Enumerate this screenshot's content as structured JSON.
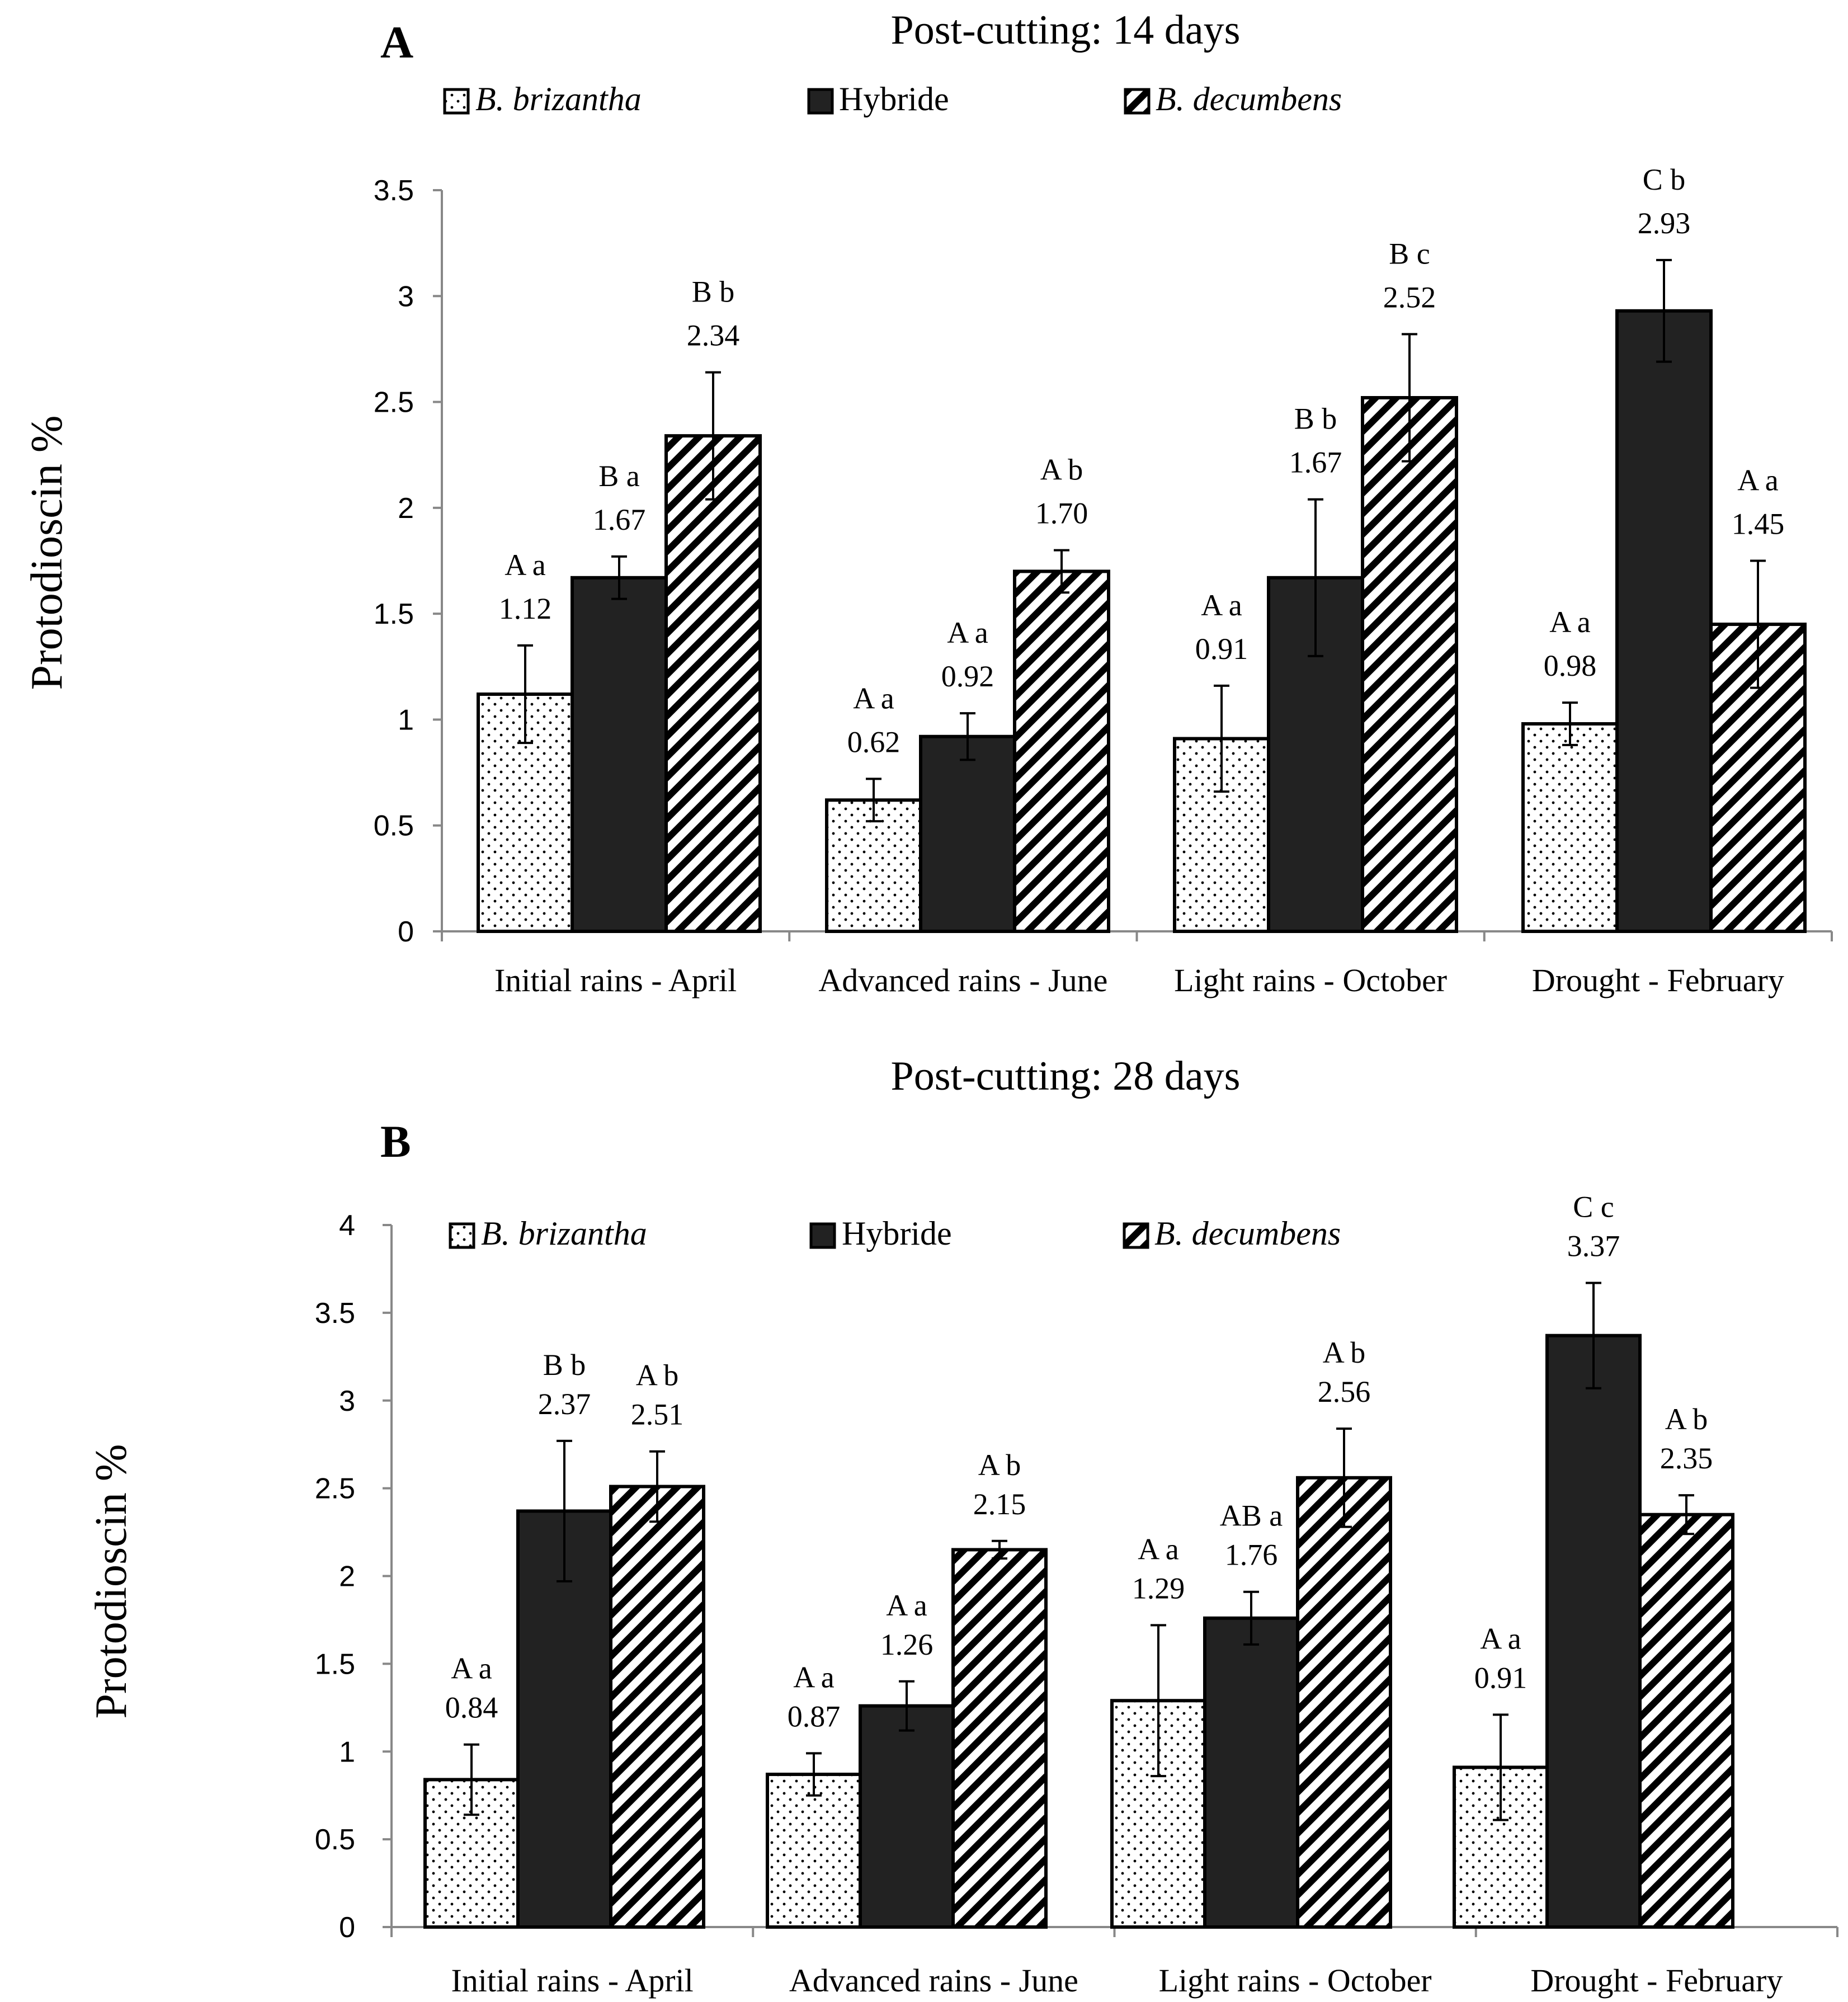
{
  "colors": {
    "background": "#ffffff",
    "axis": "#888888",
    "bar_outline": "#000000",
    "hybride_fill": "#222222",
    "text": "#000000"
  },
  "chart_data": [
    {
      "type": "bar",
      "panel_letter": "A",
      "title": "Post-cutting: 14 days",
      "ylabel": "Protodioscin %",
      "xlabel": "",
      "ylim": [
        0,
        3.5
      ],
      "yticks": [
        "0",
        "0.5",
        "1",
        "1.5",
        "2",
        "2.5",
        "3",
        "3.5"
      ],
      "categories": [
        "Initial rains -  April",
        "Advanced rains -  June",
        "Light rains - October",
        "Drought - February"
      ],
      "legend": [
        {
          "name": "B. brizantha",
          "pattern": "dots",
          "italic": true
        },
        {
          "name": "Hybride",
          "pattern": "solid",
          "italic": false
        },
        {
          "name": "B. decumbens",
          "pattern": "stripes",
          "italic": true
        }
      ],
      "series": [
        {
          "name": "B. brizantha",
          "values": [
            1.12,
            0.62,
            0.91,
            0.98
          ],
          "errors": [
            0.23,
            0.1,
            0.25,
            0.1
          ],
          "value_labels": [
            "1.12",
            "0.62",
            "0.91",
            "0.98"
          ],
          "letters": [
            "A a",
            "A a",
            "A a",
            "A a"
          ]
        },
        {
          "name": "Hybride",
          "values": [
            1.67,
            0.92,
            1.67,
            2.93
          ],
          "errors": [
            0.1,
            0.11,
            0.37,
            0.24
          ],
          "value_labels": [
            "1.67",
            "0.92",
            "1.67",
            "2.93"
          ],
          "letters": [
            "B a",
            "A a",
            "B b",
            "C b"
          ]
        },
        {
          "name": "B. decumbens",
          "values": [
            2.34,
            1.7,
            2.52,
            1.45
          ],
          "errors": [
            0.3,
            0.1,
            0.3,
            0.3
          ],
          "value_labels": [
            "2.34",
            "1.70",
            "2.52",
            "1.45"
          ],
          "letters": [
            "B b",
            "A b",
            "B c",
            "A a"
          ]
        }
      ]
    },
    {
      "type": "bar",
      "panel_letter": "B",
      "title": "Post-cutting: 28 days",
      "ylabel": "Protodioscin %",
      "xlabel": "",
      "ylim": [
        0,
        4
      ],
      "yticks": [
        "0",
        "0.5",
        "1",
        "1.5",
        "2",
        "2.5",
        "3",
        "3.5",
        "4"
      ],
      "categories": [
        "Initial rains -  April",
        "Advanced rains -  June",
        "Light rains - October",
        "Drought - February"
      ],
      "legend": [
        {
          "name": "B. brizantha",
          "pattern": "dots",
          "italic": true
        },
        {
          "name": "Hybride",
          "pattern": "solid",
          "italic": false
        },
        {
          "name": "B. decumbens",
          "pattern": "stripes",
          "italic": true
        }
      ],
      "series": [
        {
          "name": "B. brizantha",
          "values": [
            0.84,
            0.87,
            1.29,
            0.91
          ],
          "errors": [
            0.2,
            0.12,
            0.43,
            0.3
          ],
          "value_labels": [
            "0.84",
            "0.87",
            "1.29",
            "0.91"
          ],
          "letters": [
            "A a",
            "A a",
            "A a",
            "A a"
          ]
        },
        {
          "name": "Hybride",
          "values": [
            2.37,
            1.26,
            1.76,
            3.37
          ],
          "errors": [
            0.4,
            0.14,
            0.15,
            0.3
          ],
          "value_labels": [
            "2.37",
            "1.26",
            "1.76",
            "3.37"
          ],
          "letters": [
            "B b",
            "A a",
            "AB a",
            "C c"
          ]
        },
        {
          "name": "B. decumbens",
          "values": [
            2.51,
            2.15,
            2.56,
            2.35
          ],
          "errors": [
            0.2,
            0.05,
            0.28,
            0.11
          ],
          "value_labels": [
            "2.51",
            "2.15",
            "2.56",
            "2.35"
          ],
          "letters": [
            "A b",
            "A b",
            "A b",
            "A b"
          ]
        }
      ]
    }
  ]
}
